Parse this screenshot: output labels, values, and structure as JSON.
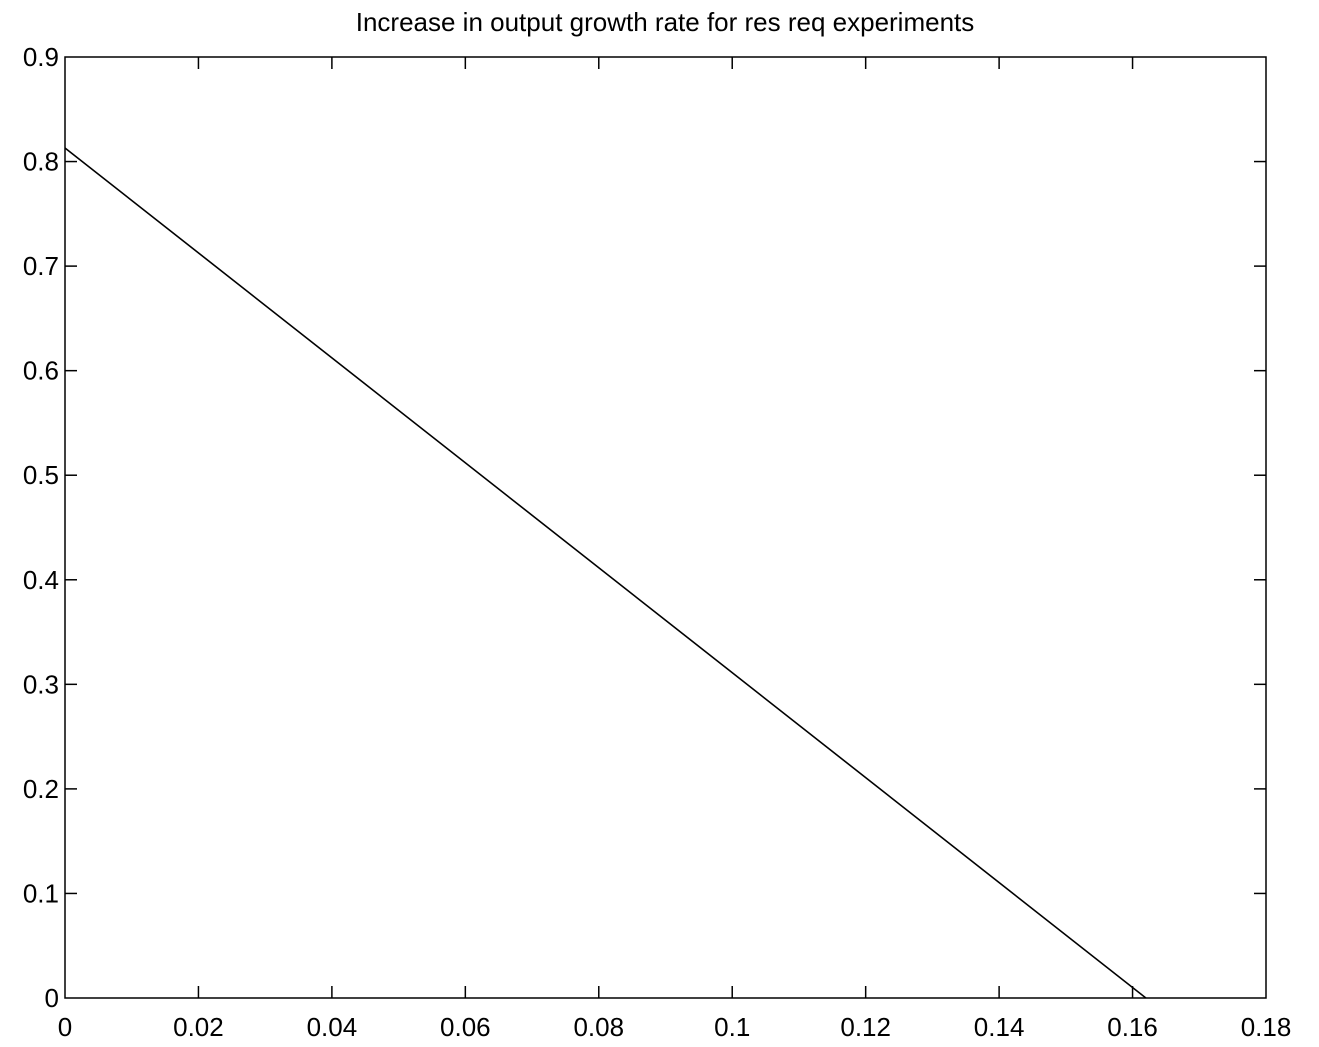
{
  "chart_data": {
    "type": "line",
    "title": "Increase in output growth rate for res req experiments",
    "xlabel": "",
    "ylabel": "",
    "xlim": [
      0,
      0.18
    ],
    "ylim": [
      0,
      0.9
    ],
    "x_ticks": [
      0,
      0.02,
      0.04,
      0.06,
      0.08,
      0.1,
      0.12,
      0.14,
      0.16,
      0.18
    ],
    "x_tick_labels": [
      "0",
      "0.02",
      "0.04",
      "0.06",
      "0.08",
      "0.1",
      "0.12",
      "0.14",
      "0.16",
      "0.18"
    ],
    "y_ticks": [
      0,
      0.1,
      0.2,
      0.3,
      0.4,
      0.5,
      0.6,
      0.7,
      0.8,
      0.9
    ],
    "y_tick_labels": [
      "0",
      "0.1",
      "0.2",
      "0.3",
      "0.4",
      "0.5",
      "0.6",
      "0.7",
      "0.8",
      "0.9"
    ],
    "grid": false,
    "series": [
      {
        "x": [
          0,
          0.162
        ],
        "y": [
          0.813,
          0
        ],
        "color": "#000000"
      }
    ]
  }
}
